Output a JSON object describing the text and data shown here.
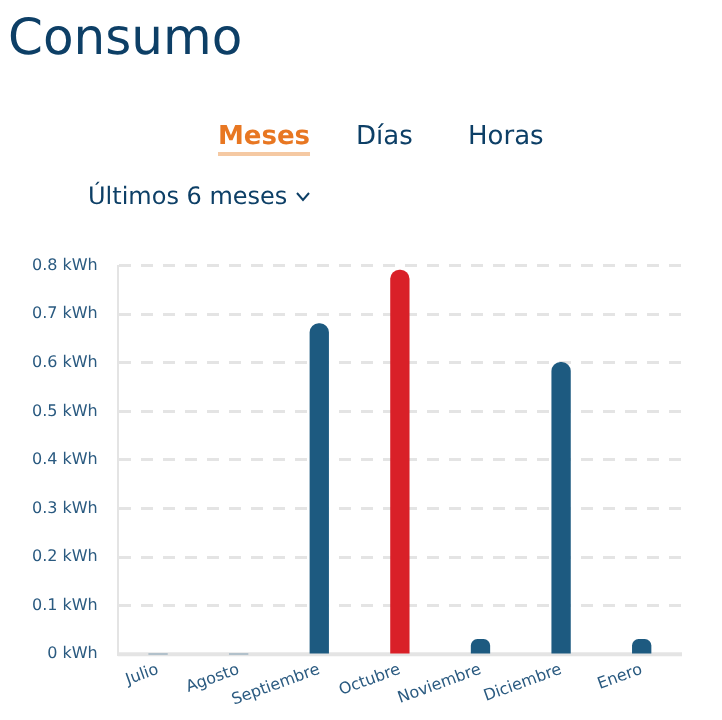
{
  "chart_data": {
    "type": "bar",
    "title": "Consumo",
    "subtitle": "Últimos 6 meses",
    "annotations": [
      "Meses",
      "Días",
      "Horas"
    ],
    "categories": [
      "Julio",
      "Agosto",
      "Septiembre",
      "Octubre",
      "Noviembre",
      "Diciembre",
      "Enero"
    ],
    "values": [
      0,
      0,
      0.68,
      0.79,
      0.03,
      0.6,
      0.03
    ],
    "colors": [
      "#1d5a80",
      "#1d5a80",
      "#1d5a80",
      "#d92028",
      "#1d5a80",
      "#1d5a80",
      "#1d5a80"
    ],
    "ylim": [
      0,
      0.8
    ],
    "yticks": [
      {
        "value": 0,
        "label": "0 kWh"
      },
      {
        "value": 0.1,
        "label": "0.1 kWh"
      },
      {
        "value": 0.2,
        "label": "0.2 kWh"
      },
      {
        "value": 0.3,
        "label": "0.3 kWh"
      },
      {
        "value": 0.4,
        "label": "0.4 kWh"
      },
      {
        "value": 0.5,
        "label": "0.5 kWh"
      },
      {
        "value": 0.6,
        "label": "0.6 kWh"
      },
      {
        "value": 0.7,
        "label": "0.7 kWh"
      },
      {
        "value": 0.8,
        "label": "0.8 kWh"
      }
    ],
    "grid": "y",
    "legend": false
  }
}
